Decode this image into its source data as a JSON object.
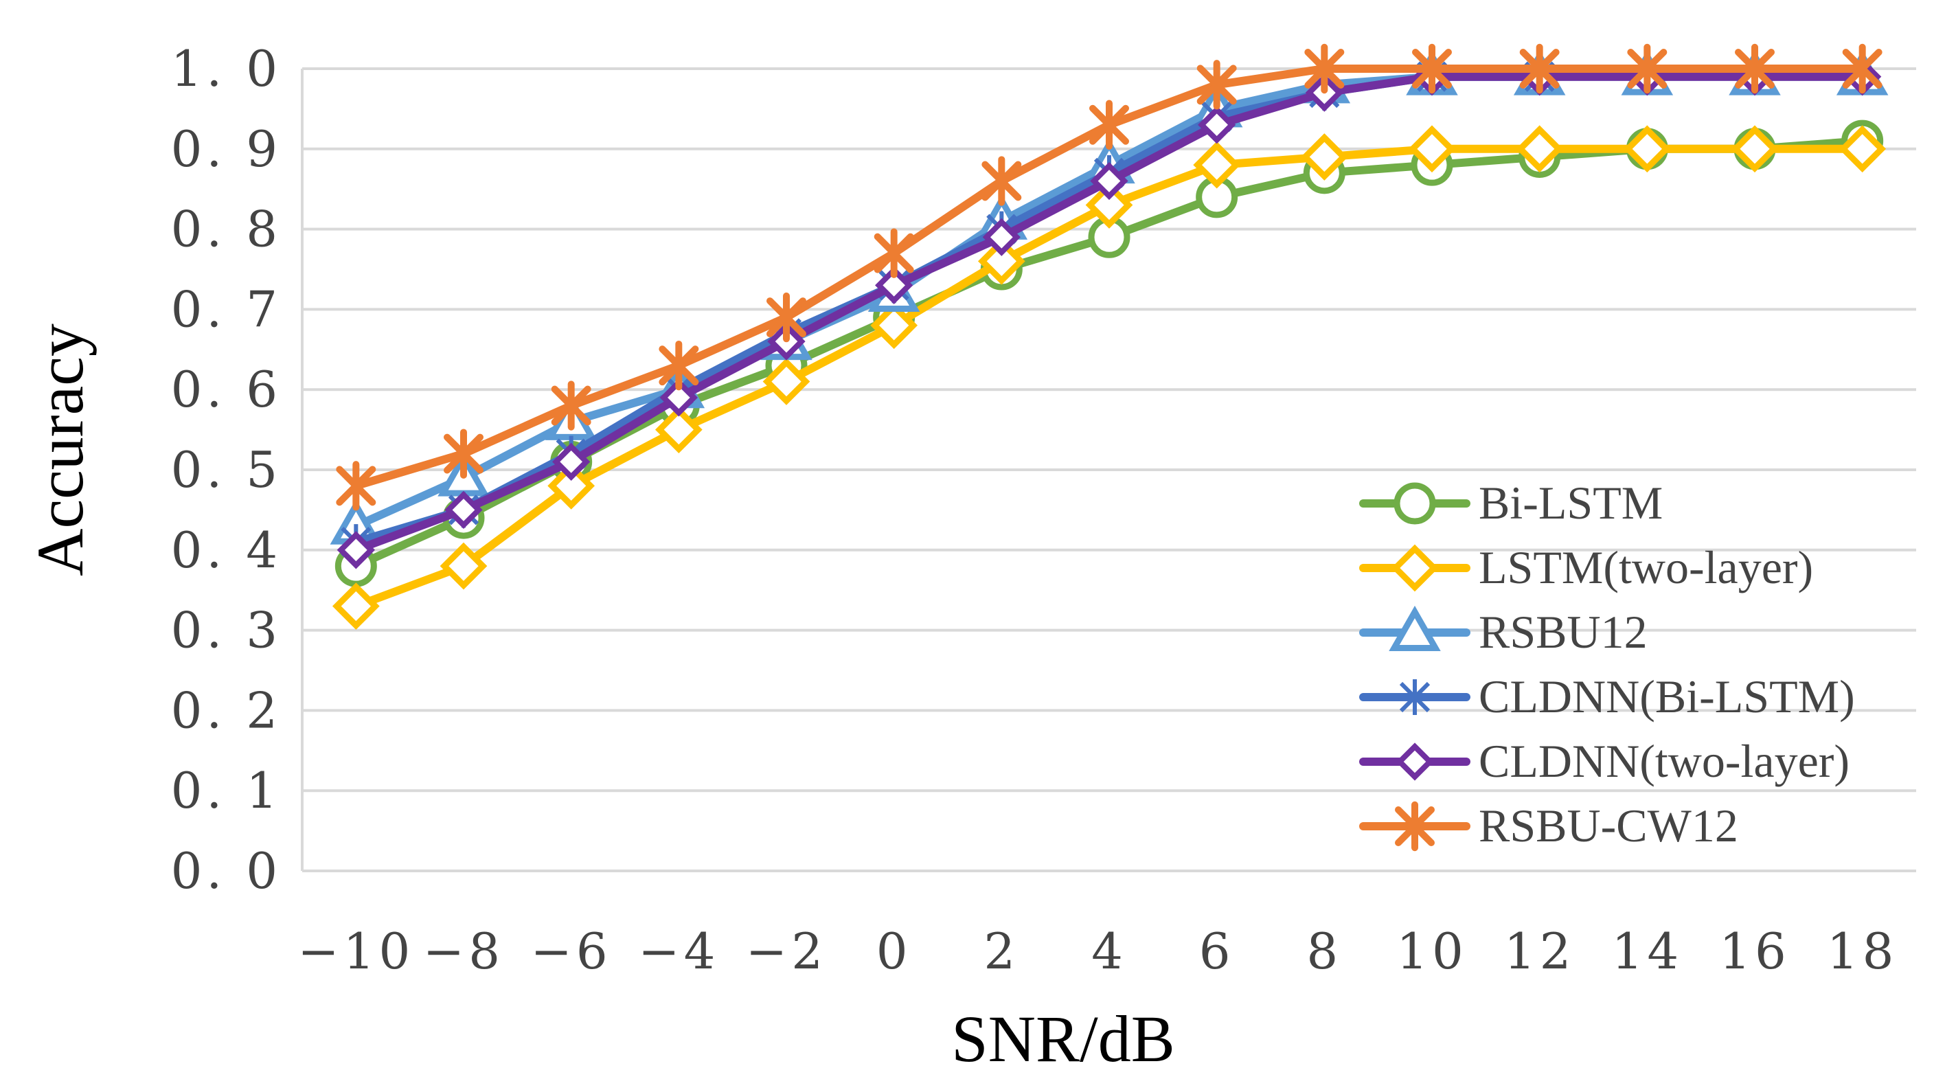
{
  "chart_data": {
    "type": "line",
    "title": "",
    "xlabel": "SNR/dB",
    "ylabel": "Accuracy",
    "ylim": [
      0,
      1
    ],
    "yticks": [
      "0. 0",
      "0. 1",
      "0. 2",
      "0. 3",
      "0. 4",
      "0. 5",
      "0. 6",
      "0. 7",
      "0. 8",
      "0. 9",
      "1. 0"
    ],
    "categories": [
      "−10",
      "−8",
      "−6",
      "−4",
      "−2",
      "0",
      "2",
      "4",
      "6",
      "8",
      "10",
      "12",
      "14",
      "16",
      "18"
    ],
    "grid": true,
    "legend_position": "right",
    "series": [
      {
        "name": "Bi-LSTM",
        "color": "#70ad47",
        "marker": "circle",
        "values": [
          0.38,
          0.44,
          0.51,
          0.58,
          0.63,
          0.69,
          0.75,
          0.79,
          0.84,
          0.87,
          0.88,
          0.89,
          0.9,
          0.9,
          0.91
        ]
      },
      {
        "name": "LSTM(two-layer)",
        "color": "#ffc000",
        "marker": "diamond",
        "values": [
          0.33,
          0.38,
          0.48,
          0.55,
          0.61,
          0.68,
          0.76,
          0.83,
          0.88,
          0.89,
          0.9,
          0.9,
          0.9,
          0.9,
          0.9
        ]
      },
      {
        "name": "RSBU12",
        "color": "#5b9bd5",
        "marker": "triangle",
        "values": [
          0.43,
          0.49,
          0.56,
          0.6,
          0.66,
          0.72,
          0.81,
          0.88,
          0.95,
          0.98,
          0.99,
          0.99,
          0.99,
          0.99,
          0.99
        ]
      },
      {
        "name": "CLDNN(Bi-LSTM)",
        "color": "#4472c4",
        "marker": "asterisk",
        "values": [
          0.41,
          0.45,
          0.52,
          0.6,
          0.67,
          0.73,
          0.8,
          0.87,
          0.94,
          0.97,
          0.99,
          0.99,
          1.0,
          1.0,
          1.0
        ]
      },
      {
        "name": "CLDNN(two-layer)",
        "color": "#7030a0",
        "marker": "diamond-small",
        "values": [
          0.4,
          0.45,
          0.51,
          0.59,
          0.66,
          0.73,
          0.79,
          0.86,
          0.93,
          0.97,
          0.99,
          0.99,
          0.99,
          0.99,
          0.99
        ]
      },
      {
        "name": "RSBU-CW12",
        "color": "#ed7d31",
        "marker": "star",
        "values": [
          0.48,
          0.52,
          0.58,
          0.63,
          0.69,
          0.77,
          0.86,
          0.93,
          0.98,
          1.0,
          1.0,
          1.0,
          1.0,
          1.0,
          1.0
        ]
      }
    ]
  }
}
